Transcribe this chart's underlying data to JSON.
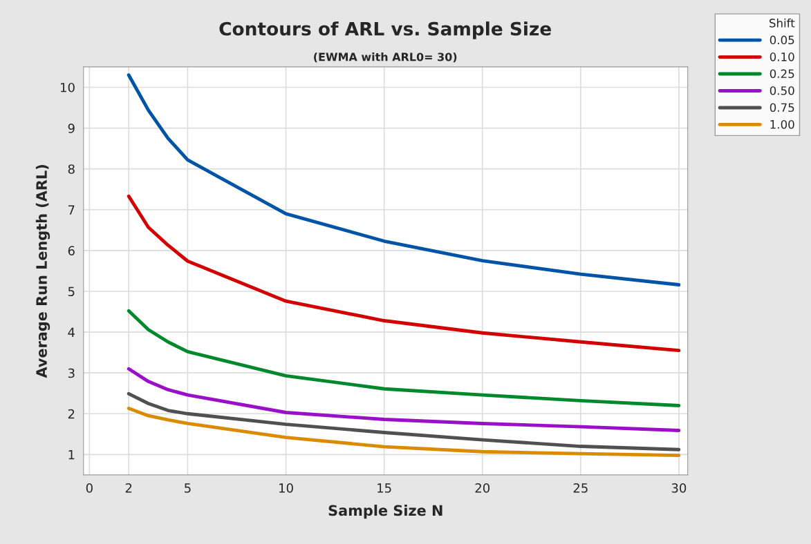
{
  "chart_data": {
    "type": "line",
    "title": "Contours of ARL vs. Sample Size",
    "subtitle": "(EWMA with ARL0= 30)",
    "xlabel": "Sample Size N",
    "ylabel": "Average Run Length (ARL)",
    "legend_title": "Shift",
    "x": [
      2,
      3,
      4,
      5,
      10,
      15,
      20,
      25,
      30
    ],
    "series": [
      {
        "name": "0.05",
        "color": "#0054a6",
        "values": [
          10.3,
          9.44,
          8.75,
          8.22,
          6.9,
          6.23,
          5.75,
          5.42,
          5.16
        ]
      },
      {
        "name": "0.10",
        "color": "#d20000",
        "values": [
          7.33,
          6.57,
          6.13,
          5.74,
          4.76,
          4.28,
          3.98,
          3.76,
          3.55
        ]
      },
      {
        "name": "0.25",
        "color": "#00892c",
        "values": [
          4.52,
          4.06,
          3.76,
          3.52,
          2.93,
          2.61,
          2.46,
          2.32,
          2.2
        ]
      },
      {
        "name": "0.50",
        "color": "#9a0fc8",
        "values": [
          3.1,
          2.79,
          2.59,
          2.46,
          2.03,
          1.86,
          1.76,
          1.68,
          1.59
        ]
      },
      {
        "name": "0.75",
        "color": "#505050",
        "values": [
          2.49,
          2.25,
          2.08,
          2.0,
          1.74,
          1.54,
          1.36,
          1.2,
          1.12
        ]
      },
      {
        "name": "1.00",
        "color": "#d98c00",
        "values": [
          2.13,
          1.95,
          1.85,
          1.76,
          1.42,
          1.19,
          1.07,
          1.02,
          0.98
        ]
      }
    ],
    "xlim": [
      -0.3,
      30.45
    ],
    "ylim": [
      0.5,
      10.5
    ],
    "xticks": [
      0,
      2,
      5,
      10,
      15,
      20,
      25,
      30
    ],
    "yticks": [
      1,
      2,
      3,
      4,
      5,
      6,
      7,
      8,
      9,
      10
    ],
    "grid": true,
    "legend": "top right",
    "marker": "none",
    "line_style": "solid"
  }
}
